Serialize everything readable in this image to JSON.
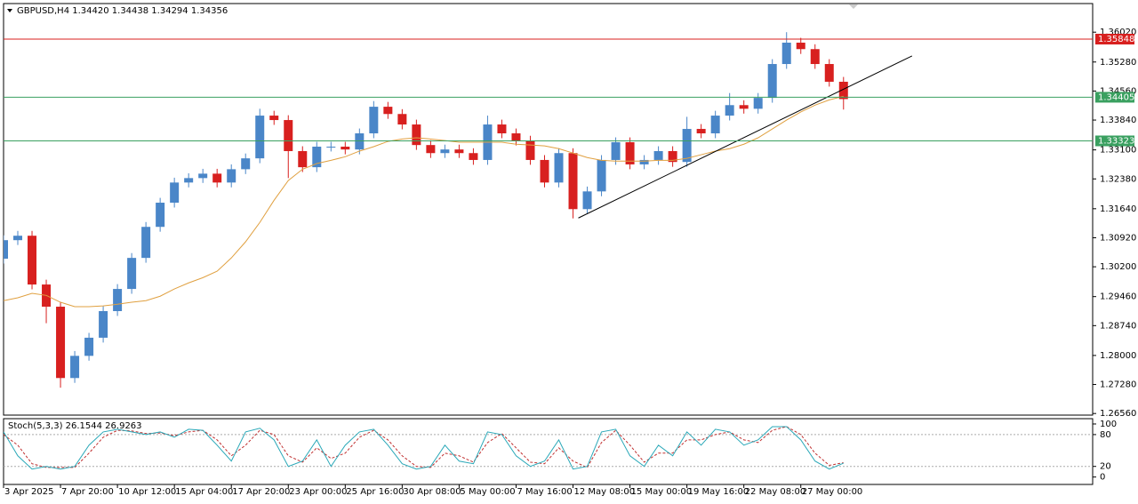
{
  "chart_data": {
    "type": "candlestick",
    "title": "GBPUSD,H4  1.34420 1.34438 1.34294 1.34356",
    "bull_color": "#4a86c8",
    "bear_color": "#d8201f",
    "xlim": [
      0,
      306
    ],
    "ylim": [
      1.2652,
      1.3673
    ],
    "xticks": [
      {
        "value": 0,
        "label": "3 Apr 2025"
      },
      {
        "value": 16,
        "label": "7 Apr 20:00"
      },
      {
        "value": 32,
        "label": "10 Apr 12:00"
      },
      {
        "value": 48,
        "label": "15 Apr 04:00"
      },
      {
        "value": 64,
        "label": "17 Apr 20:00"
      },
      {
        "value": 80,
        "label": "23 Apr 00:00"
      },
      {
        "value": 96,
        "label": "25 Apr 16:00"
      },
      {
        "value": 112,
        "label": "30 Apr 08:00"
      },
      {
        "value": 128,
        "label": "5 May 00:00"
      },
      {
        "value": 144,
        "label": "7 May 16:00"
      },
      {
        "value": 160,
        "label": "12 May 08:00"
      },
      {
        "value": 176,
        "label": "15 May 00:00"
      },
      {
        "value": 192,
        "label": "19 May 16:00"
      },
      {
        "value": 208,
        "label": "22 May 08:00"
      },
      {
        "value": 224,
        "label": "27 May 00:00"
      }
    ],
    "yticks": [
      {
        "value": 1.3602,
        "label": "1.36020"
      },
      {
        "value": 1.3528,
        "label": "1.35280"
      },
      {
        "value": 1.3456,
        "label": "1.34560"
      },
      {
        "value": 1.3384,
        "label": "1.33840"
      },
      {
        "value": 1.331,
        "label": "1.33100"
      },
      {
        "value": 1.3238,
        "label": "1.32380"
      },
      {
        "value": 1.3164,
        "label": "1.31640"
      },
      {
        "value": 1.3092,
        "label": "1.30920"
      },
      {
        "value": 1.302,
        "label": "1.30200"
      },
      {
        "value": 1.2946,
        "label": "1.29460"
      },
      {
        "value": 1.2874,
        "label": "1.28740"
      },
      {
        "value": 1.28,
        "label": "1.28000"
      },
      {
        "value": 1.2728,
        "label": "1.27280"
      },
      {
        "value": 1.2656,
        "label": "1.26560"
      }
    ],
    "x": [
      0,
      4,
      8,
      12,
      16,
      20,
      24,
      28,
      32,
      36,
      40,
      44,
      48,
      52,
      56,
      60,
      64,
      68,
      72,
      76,
      80,
      84,
      88,
      92,
      96,
      100,
      104,
      108,
      112,
      116,
      120,
      124,
      128,
      132,
      136,
      140,
      144,
      148,
      152,
      156,
      160,
      164,
      168,
      172,
      176,
      180,
      184,
      188,
      192,
      196,
      200,
      204,
      208,
      212,
      216,
      220,
      224,
      228,
      232,
      236
    ],
    "open": [
      1.304,
      1.3086,
      1.3097,
      1.2976,
      1.2921,
      1.2744,
      1.2799,
      1.2844,
      1.291,
      1.2965,
      1.3042,
      1.3119,
      1.3179,
      1.3229,
      1.324,
      1.3251,
      1.3229,
      1.3262,
      1.3289,
      1.3395,
      1.3384,
      1.3307,
      1.3267,
      1.3318,
      1.3318,
      1.3311,
      1.3351,
      1.3417,
      1.3399,
      1.3373,
      1.3322,
      1.3302,
      1.3311,
      1.3302,
      1.3285,
      1.3373,
      1.3351,
      1.3333,
      1.3285,
      1.3229,
      1.3302,
      1.3163,
      1.3207,
      1.3285,
      1.3329,
      1.3274,
      1.3285,
      1.3307,
      1.328,
      1.3362,
      1.3351,
      1.3395,
      1.3421,
      1.3412,
      1.3439,
      1.3523,
      1.3576,
      1.356,
      1.3523,
      1.3479
    ],
    "high": [
      1.3098,
      1.3109,
      1.3109,
      1.2988,
      1.2933,
      1.2811,
      1.2856,
      1.2922,
      1.2977,
      1.3054,
      1.3131,
      1.3191,
      1.3241,
      1.3252,
      1.3263,
      1.3263,
      1.3274,
      1.3301,
      1.3412,
      1.3407,
      1.3396,
      1.3319,
      1.333,
      1.333,
      1.333,
      1.3363,
      1.3431,
      1.3429,
      1.3411,
      1.3385,
      1.3334,
      1.3323,
      1.3323,
      1.3314,
      1.3395,
      1.3385,
      1.3363,
      1.3345,
      1.3297,
      1.3314,
      1.3314,
      1.3219,
      1.3297,
      1.3341,
      1.3341,
      1.3297,
      1.3319,
      1.3319,
      1.3392,
      1.3374,
      1.3407,
      1.3451,
      1.3433,
      1.3451,
      1.3535,
      1.3602,
      1.3588,
      1.3572,
      1.3535,
      1.3491
    ],
    "low": [
      1.3028,
      1.3074,
      1.2964,
      1.288,
      1.272,
      1.2732,
      1.2787,
      1.2832,
      1.2898,
      1.2953,
      1.303,
      1.3107,
      1.3167,
      1.3217,
      1.3228,
      1.3217,
      1.3217,
      1.325,
      1.3277,
      1.3372,
      1.324,
      1.3255,
      1.3255,
      1.3306,
      1.3299,
      1.3299,
      1.3339,
      1.3387,
      1.3361,
      1.331,
      1.329,
      1.329,
      1.329,
      1.3273,
      1.3273,
      1.3339,
      1.3321,
      1.3273,
      1.3217,
      1.3217,
      1.314,
      1.3151,
      1.3195,
      1.3273,
      1.3262,
      1.3262,
      1.3273,
      1.3268,
      1.3268,
      1.3339,
      1.3339,
      1.3383,
      1.34,
      1.34,
      1.3427,
      1.3511,
      1.3548,
      1.3511,
      1.3467,
      1.341
    ],
    "close": [
      1.3086,
      1.3097,
      1.2976,
      1.2921,
      1.2744,
      1.2799,
      1.2844,
      1.291,
      1.2965,
      1.3042,
      1.3119,
      1.3179,
      1.3229,
      1.324,
      1.3251,
      1.3229,
      1.3262,
      1.3289,
      1.3395,
      1.3384,
      1.3307,
      1.3267,
      1.3318,
      1.3318,
      1.3311,
      1.3351,
      1.3417,
      1.3399,
      1.3373,
      1.3322,
      1.3302,
      1.3311,
      1.3302,
      1.3285,
      1.3373,
      1.3351,
      1.3333,
      1.3285,
      1.3229,
      1.3302,
      1.3163,
      1.3207,
      1.3285,
      1.3329,
      1.3274,
      1.3285,
      1.3307,
      1.328,
      1.3362,
      1.3351,
      1.3395,
      1.3421,
      1.3412,
      1.3439,
      1.3523,
      1.3576,
      1.356,
      1.3523,
      1.3479,
      1.3436
    ],
    "moving_average": {
      "color": "#e0a040",
      "values": [
        1.2936,
        1.2943,
        1.2954,
        1.2949,
        1.2932,
        1.2921,
        1.2921,
        1.2923,
        1.2927,
        1.2932,
        1.2936,
        1.2947,
        1.2965,
        1.298,
        1.2993,
        1.3009,
        1.3042,
        1.3082,
        1.313,
        1.3185,
        1.3234,
        1.3262,
        1.3276,
        1.3284,
        1.3293,
        1.3307,
        1.3318,
        1.3331,
        1.3337,
        1.334,
        1.3337,
        1.3333,
        1.3329,
        1.3329,
        1.3329,
        1.3329,
        1.3324,
        1.3322,
        1.332,
        1.3313,
        1.3302,
        1.3291,
        1.3284,
        1.3282,
        1.3282,
        1.3282,
        1.3284,
        1.3284,
        1.3289,
        1.3298,
        1.3307,
        1.3313,
        1.3324,
        1.334,
        1.3362,
        1.3384,
        1.3404,
        1.3421,
        1.3434,
        1.3443
      ]
    },
    "levels": [
      {
        "value": 1.35848,
        "color": "#d8201f"
      },
      {
        "value": 1.34405,
        "color": "#3aa060"
      },
      {
        "value": 1.33323,
        "color": "#3aa060"
      }
    ],
    "trendline": {
      "x": [
        161.5,
        255.25
      ],
      "y": [
        1.3141,
        1.3543
      ],
      "color": "#000000"
    },
    "stochastic": {
      "title": "Stoch(5,3,3) 26.1544 26.9263",
      "ylim": [
        -14,
        110
      ],
      "yticks": [
        0,
        20,
        80,
        100
      ],
      "levels": [
        20,
        80
      ],
      "main": {
        "color": "#2aa8b8",
        "values": [
          85,
          40,
          15,
          20,
          15,
          20,
          60,
          85,
          90,
          85,
          80,
          85,
          75,
          90,
          88,
          60,
          30,
          85,
          92,
          70,
          20,
          30,
          70,
          20,
          60,
          85,
          90,
          60,
          25,
          15,
          20,
          60,
          30,
          25,
          85,
          80,
          40,
          20,
          30,
          70,
          15,
          20,
          85,
          90,
          40,
          20,
          60,
          40,
          85,
          60,
          90,
          85,
          60,
          70,
          95,
          95,
          70,
          30,
          15,
          26.1544
        ]
      },
      "signal": {
        "color": "#c03030",
        "values": [
          80,
          60,
          25,
          18,
          18,
          18,
          45,
          75,
          88,
          87,
          82,
          83,
          78,
          85,
          88,
          70,
          40,
          60,
          88,
          80,
          40,
          28,
          55,
          35,
          45,
          75,
          88,
          70,
          40,
          20,
          18,
          45,
          40,
          28,
          65,
          82,
          55,
          28,
          25,
          55,
          30,
          18,
          65,
          88,
          60,
          28,
          45,
          45,
          70,
          70,
          80,
          85,
          70,
          65,
          88,
          95,
          80,
          45,
          22,
          26.9263
        ]
      }
    }
  }
}
